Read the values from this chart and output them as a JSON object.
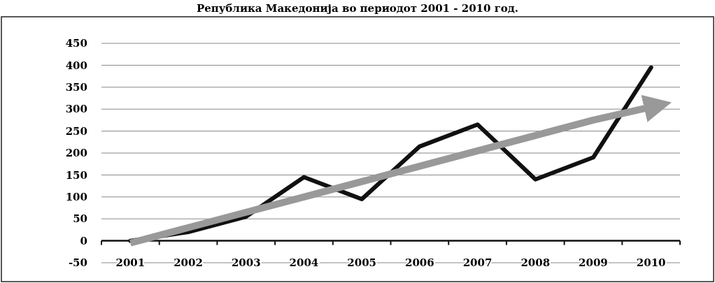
{
  "chart_data": {
    "type": "line",
    "title": "Република Македонија во периодот 2001 - 2010 год.",
    "categories": [
      "2001",
      "2002",
      "2003",
      "2004",
      "2005",
      "2006",
      "2007",
      "2008",
      "2009",
      "2010"
    ],
    "series": [
      {
        "color": "#111111",
        "values": [
          0,
          20,
          55,
          145,
          95,
          215,
          265,
          140,
          190,
          395
        ]
      },
      {
        "color": "#999999",
        "values": [
          -5,
          30,
          65,
          100,
          135,
          170,
          205,
          240,
          275,
          305
        ]
      }
    ],
    "ylim": [
      -50,
      450
    ],
    "yticks": [
      -50,
      0,
      50,
      100,
      150,
      200,
      250,
      300,
      350,
      400,
      450
    ],
    "grid": "y",
    "marker": "none",
    "line_style": "solid"
  }
}
